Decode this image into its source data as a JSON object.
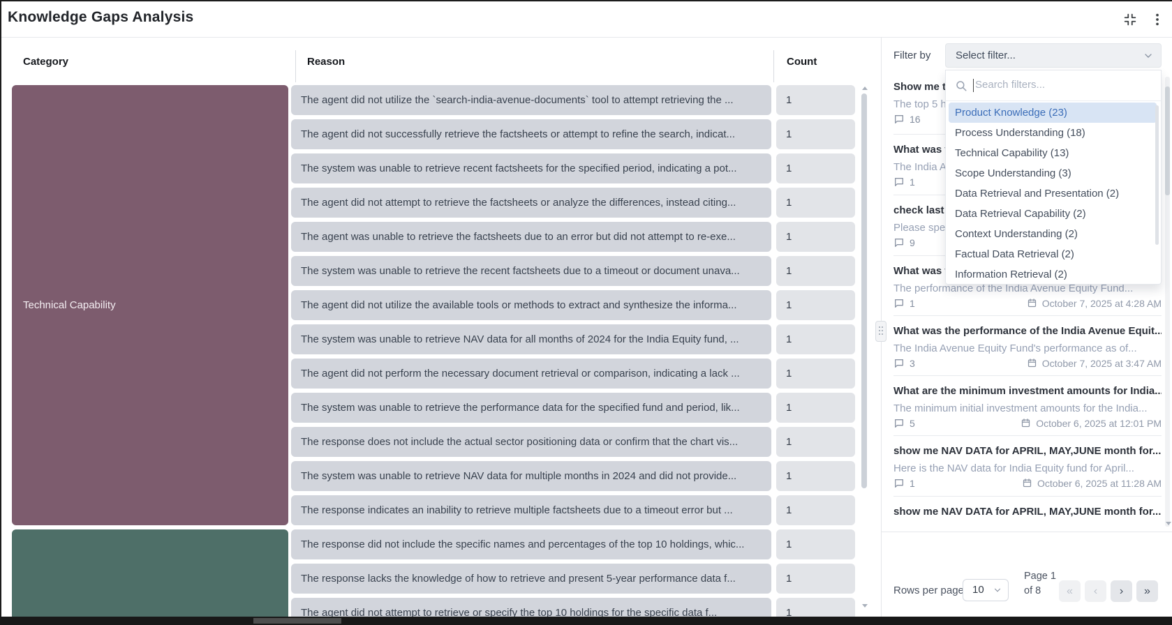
{
  "header": {
    "title": "Knowledge Gaps Analysis"
  },
  "table": {
    "columns": [
      "Category",
      "Reason",
      "Count"
    ],
    "categories": [
      {
        "label": "Technical Capability",
        "color": "#7d5c6e",
        "row_span": 13
      },
      {
        "label": "",
        "color": "#4e6f68",
        "row_span": 3
      }
    ],
    "rows": [
      {
        "reason": "The agent did not utilize the `search-india-avenue-documents` tool to attempt retrieving the ...",
        "count": "1"
      },
      {
        "reason": "The agent did not successfully retrieve the factsheets or attempt to refine the search, indicat...",
        "count": "1"
      },
      {
        "reason": "The system was unable to retrieve recent factsheets for the specified period, indicating a pot...",
        "count": "1"
      },
      {
        "reason": "The agent did not attempt to retrieve the factsheets or analyze the differences, instead citing...",
        "count": "1"
      },
      {
        "reason": "The agent was unable to retrieve the factsheets due to an error but did not attempt to re-exe...",
        "count": "1"
      },
      {
        "reason": "The system was unable to retrieve the recent factsheets due to a timeout or document unava...",
        "count": "1"
      },
      {
        "reason": "The agent did not utilize the available tools or methods to extract and synthesize the informa...",
        "count": "1"
      },
      {
        "reason": "The system was unable to retrieve NAV data for all months of 2024 for the India Equity fund, ...",
        "count": "1"
      },
      {
        "reason": "The agent did not perform the necessary document retrieval or comparison, indicating a lack ...",
        "count": "1"
      },
      {
        "reason": "The system was unable to retrieve the performance data for the specified fund and period, lik...",
        "count": "1"
      },
      {
        "reason": "The response does not include the actual sector positioning data or confirm that the chart vis...",
        "count": "1"
      },
      {
        "reason": "The system was unable to retrieve NAV data for multiple months in 2024 and did not provide...",
        "count": "1"
      },
      {
        "reason": "The response indicates an inability to retrieve multiple factsheets due to a timeout error but ...",
        "count": "1"
      },
      {
        "reason": "The response did not include the specific names and percentages of the top 10 holdings, whic...",
        "count": "1"
      },
      {
        "reason": "The response lacks the knowledge of how to retrieve and present 5-year performance data f...",
        "count": "1"
      },
      {
        "reason": "The agent did not attempt to retrieve or specify the top 10 holdings for the specific data f...",
        "count": "1"
      }
    ]
  },
  "sidebar": {
    "filter_label": "Filter by",
    "filter_placeholder": "Select filter...",
    "search_placeholder": "Search filters...",
    "filter_options": [
      {
        "label": "Product Knowledge",
        "count": 23,
        "selected": true
      },
      {
        "label": "Process Understanding",
        "count": 18,
        "selected": false
      },
      {
        "label": "Technical Capability",
        "count": 13,
        "selected": false
      },
      {
        "label": "Scope Understanding",
        "count": 3,
        "selected": false
      },
      {
        "label": "Data Retrieval and Presentation",
        "count": 2,
        "selected": false
      },
      {
        "label": "Data Retrieval Capability",
        "count": 2,
        "selected": false
      },
      {
        "label": "Context Understanding",
        "count": 2,
        "selected": false
      },
      {
        "label": "Factual Data Retrieval",
        "count": 2,
        "selected": false
      },
      {
        "label": "Information Retrieval",
        "count": 2,
        "selected": false
      }
    ],
    "items": [
      {
        "title": "Show me th",
        "subtitle": "The top 5 h",
        "comments": "16",
        "date": ""
      },
      {
        "title": "What was t",
        "subtitle": "The India A",
        "comments": "1",
        "date": ""
      },
      {
        "title": "check last 3",
        "subtitle": "Please spec",
        "comments": "9",
        "date": ""
      },
      {
        "title": "What was t",
        "subtitle": "The performance of the India Avenue Equity Fund...",
        "comments": "1",
        "date": "October 7, 2025 at 4:28 AM"
      },
      {
        "title": "What was the performance of the India Avenue Equit...",
        "subtitle": "The India Avenue Equity Fund's performance as of...",
        "comments": "3",
        "date": "October 7, 2025 at 3:47 AM"
      },
      {
        "title": "What are the minimum investment amounts for India...",
        "subtitle": "The minimum initial investment amounts for the India...",
        "comments": "5",
        "date": "October 6, 2025 at 12:01 PM"
      },
      {
        "title": "show me NAV DATA for APRIL, MAY,JUNE month for...",
        "subtitle": "Here is the NAV data for India Equity fund for April...",
        "comments": "1",
        "date": "October 6, 2025 at 11:28 AM"
      },
      {
        "title": "show me NAV DATA for APRIL, MAY,JUNE month for...",
        "subtitle": "",
        "comments": "",
        "date": ""
      }
    ],
    "pagination": {
      "rows_label": "Rows per page",
      "rows_value": "10",
      "page_text": "Page 1 of 8",
      "buttons": [
        {
          "glyph": "«",
          "disabled": true
        },
        {
          "glyph": "‹",
          "disabled": true
        },
        {
          "glyph": "›",
          "disabled": false
        },
        {
          "glyph": "»",
          "disabled": false
        }
      ]
    }
  }
}
